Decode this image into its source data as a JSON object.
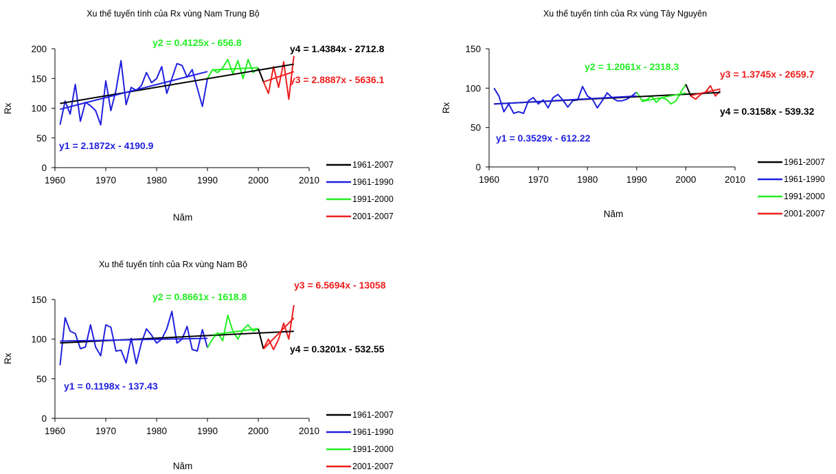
{
  "colors": {
    "black": "#000000",
    "blue": "#1f1fe0",
    "green": "#22ee22",
    "red": "#ee1c1c"
  },
  "chart_data": [
    {
      "type": "line",
      "title": "Xu thế tuyến tính của Rx vùng Nam Trung Bộ",
      "xlabel": "Năm",
      "ylabel": "Rx",
      "xlim": [
        1960,
        2010
      ],
      "ylim": [
        0,
        200
      ],
      "xticks": [
        1960,
        1970,
        1980,
        1990,
        2000,
        2010
      ],
      "yticks": [
        0,
        50,
        100,
        150,
        200
      ],
      "legend_position": "bottom-right",
      "series": [
        {
          "name": "1961-1990",
          "color": "blue",
          "x": [
            1961,
            1962,
            1963,
            1964,
            1965,
            1966,
            1967,
            1968,
            1969,
            1970,
            1971,
            1972,
            1973,
            1974,
            1975,
            1976,
            1977,
            1978,
            1979,
            1980,
            1981,
            1982,
            1983,
            1984,
            1985,
            1986,
            1987,
            1988,
            1989,
            1990
          ],
          "y": [
            72,
            112,
            90,
            140,
            78,
            110,
            104,
            96,
            72,
            146,
            96,
            130,
            180,
            106,
            135,
            130,
            138,
            160,
            143,
            150,
            170,
            125,
            150,
            175,
            172,
            152,
            165,
            134,
            103,
            150
          ]
        },
        {
          "name": "1991-2000",
          "color": "green",
          "x": [
            1990,
            1991,
            1992,
            1993,
            1994,
            1995,
            1996,
            1997,
            1998,
            1999,
            2000
          ],
          "y": [
            150,
            165,
            160,
            168,
            182,
            158,
            180,
            150,
            182,
            160,
            167
          ]
        },
        {
          "name": "2001-2007",
          "color": "red",
          "x": [
            2000,
            2001,
            2002,
            2003,
            2004,
            2005,
            2006,
            2007
          ],
          "y": [
            167,
            145,
            125,
            170,
            135,
            178,
            115,
            188
          ]
        },
        {
          "name": "1961-2007",
          "color": "black",
          "x": [
            2000,
            2001
          ],
          "y": [
            167,
            145
          ]
        }
      ],
      "trendlines": [
        {
          "series": "1961-2007",
          "color": "black",
          "slope": 1.4384,
          "intercept": -2712.8,
          "x_range": [
            1961,
            2007
          ]
        },
        {
          "series": "1961-1990",
          "color": "blue",
          "slope": 2.1872,
          "intercept": -4190.9,
          "x_range": [
            1961,
            1990
          ]
        },
        {
          "series": "1991-2000",
          "color": "green",
          "slope": 0.4125,
          "intercept": -656.8,
          "x_range": [
            1991,
            2000
          ]
        },
        {
          "series": "2001-2007",
          "color": "red",
          "slope": 2.8887,
          "intercept": -5636.1,
          "x_range": [
            2001,
            2007
          ]
        }
      ],
      "equations": [
        {
          "text": "y2 = 0.4125x - 656.8",
          "color": "green"
        },
        {
          "text": "y4 = 1.4384x - 2712.8",
          "color": "black"
        },
        {
          "text": "y3 = 2.8887x - 5636.1",
          "color": "red"
        },
        {
          "text": "y1 = 2.1872x - 4190.9",
          "color": "blue"
        }
      ],
      "legend": [
        "1961-2007",
        "1961-1990",
        "1991-2000",
        "2001-2007"
      ]
    },
    {
      "type": "line",
      "title": "Xu thế tuyến tính của Rx vùng Tây Nguyên",
      "xlabel": "Năm",
      "ylabel": "Rx",
      "xlim": [
        1960,
        2010
      ],
      "ylim": [
        0,
        150
      ],
      "xticks": [
        1960,
        1970,
        1980,
        1990,
        2000,
        2010
      ],
      "yticks": [
        0,
        50,
        100,
        150
      ],
      "legend_position": "bottom-right",
      "series": [
        {
          "name": "1961-1990",
          "color": "blue",
          "x": [
            1961,
            1962,
            1963,
            1964,
            1965,
            1966,
            1967,
            1968,
            1969,
            1970,
            1971,
            1972,
            1973,
            1974,
            1975,
            1976,
            1977,
            1978,
            1979,
            1980,
            1981,
            1982,
            1983,
            1984,
            1985,
            1986,
            1987,
            1988,
            1989,
            1990
          ],
          "y": [
            100,
            90,
            70,
            80,
            68,
            70,
            68,
            84,
            88,
            80,
            85,
            75,
            88,
            92,
            85,
            76,
            84,
            85,
            102,
            90,
            86,
            75,
            84,
            94,
            88,
            84,
            84,
            86,
            90,
            95
          ]
        },
        {
          "name": "1991-2000",
          "color": "green",
          "x": [
            1990,
            1991,
            1992,
            1993,
            1994,
            1995,
            1996,
            1997,
            1998,
            1999,
            2000
          ],
          "y": [
            95,
            85,
            85,
            90,
            82,
            88,
            86,
            80,
            84,
            95,
            105
          ]
        },
        {
          "name": "2001-2007",
          "color": "red",
          "x": [
            2001,
            2002,
            2003,
            2004,
            2005,
            2006,
            2007
          ],
          "y": [
            90,
            86,
            92,
            95,
            103,
            90,
            97
          ]
        },
        {
          "name": "1961-2007",
          "color": "black",
          "x": [
            2000,
            2001
          ],
          "y": [
            105,
            90
          ]
        }
      ],
      "trendlines": [
        {
          "series": "1961-2007",
          "color": "black",
          "slope": 0.3158,
          "intercept": -539.32,
          "x_range": [
            1961,
            2007
          ]
        },
        {
          "series": "1961-1990",
          "color": "blue",
          "slope": 0.3529,
          "intercept": -612.22,
          "x_range": [
            1961,
            1990
          ]
        },
        {
          "series": "1991-2000",
          "color": "green",
          "slope": 1.2061,
          "intercept": -2318.3,
          "x_range": [
            1991,
            2000
          ]
        },
        {
          "series": "2001-2007",
          "color": "red",
          "slope": 1.3745,
          "intercept": -2659.7,
          "x_range": [
            2001,
            2007
          ]
        }
      ],
      "equations": [
        {
          "text": "y2 = 1.2061x - 2318.3",
          "color": "green"
        },
        {
          "text": "y3 = 1.3745x - 2659.7",
          "color": "red"
        },
        {
          "text": "y4 = 0.3158x - 539.32",
          "color": "black"
        },
        {
          "text": "y1 = 0.3529x - 612.22",
          "color": "blue"
        }
      ],
      "legend": [
        "1961-2007",
        "1961-1990",
        "1991-2000",
        "2001-2007"
      ]
    },
    {
      "type": "line",
      "title": "Xu thế tuyến tính của Rx vùng Nam Bộ",
      "xlabel": "Năm",
      "ylabel": "Rx",
      "xlim": [
        1960,
        2010
      ],
      "ylim": [
        0,
        150
      ],
      "xticks": [
        1960,
        1970,
        1980,
        1990,
        2000,
        2010
      ],
      "yticks": [
        0,
        50,
        100,
        150
      ],
      "legend_position": "bottom-right",
      "series": [
        {
          "name": "1961-1990",
          "color": "blue",
          "x": [
            1961,
            1962,
            1963,
            1964,
            1965,
            1966,
            1967,
            1968,
            1969,
            1970,
            1971,
            1972,
            1973,
            1974,
            1975,
            1976,
            1977,
            1978,
            1979,
            1980,
            1981,
            1982,
            1983,
            1984,
            1985,
            1986,
            1987,
            1988,
            1989,
            1990
          ],
          "y": [
            67,
            127,
            110,
            107,
            88,
            90,
            118,
            90,
            79,
            118,
            115,
            85,
            86,
            70,
            101,
            69,
            95,
            113,
            105,
            95,
            100,
            113,
            135,
            95,
            100,
            116,
            87,
            85,
            112,
            89
          ]
        },
        {
          "name": "1991-2000",
          "color": "green",
          "x": [
            1990,
            1991,
            1992,
            1993,
            1994,
            1995,
            1996,
            1997,
            1998,
            1999,
            2000
          ],
          "y": [
            89,
            100,
            108,
            98,
            130,
            110,
            100,
            112,
            118,
            110,
            113
          ]
        },
        {
          "name": "2001-2007",
          "color": "red",
          "x": [
            2001,
            2002,
            2003,
            2004,
            2005,
            2006,
            2007
          ],
          "y": [
            88,
            100,
            87,
            100,
            120,
            100,
            143
          ]
        },
        {
          "name": "1961-2007",
          "color": "black",
          "x": [
            2000,
            2001
          ],
          "y": [
            113,
            88
          ]
        }
      ],
      "trendlines": [
        {
          "series": "1961-2007",
          "color": "black",
          "slope": 0.3201,
          "intercept": -532.55,
          "x_range": [
            1961,
            2007
          ]
        },
        {
          "series": "1961-1990",
          "color": "blue",
          "slope": 0.1198,
          "intercept": -137.43,
          "x_range": [
            1961,
            1990
          ]
        },
        {
          "series": "1991-2000",
          "color": "green",
          "slope": 0.8661,
          "intercept": -1618.8,
          "x_range": [
            1991,
            2000
          ]
        },
        {
          "series": "2001-2007",
          "color": "red",
          "slope": 6.5694,
          "intercept": -13058,
          "x_range": [
            2001,
            2007
          ]
        }
      ],
      "equations": [
        {
          "text": "y2 = 0.8661x - 1618.8",
          "color": "green"
        },
        {
          "text": "y3 = 6.5694x - 13058",
          "color": "red"
        },
        {
          "text": "y4 = 0.3201x - 532.55",
          "color": "black"
        },
        {
          "text": "y1 = 0.1198x - 137.43",
          "color": "blue"
        }
      ],
      "legend": [
        "1961-2007",
        "1961-1990",
        "1991-2000",
        "2001-2007"
      ]
    }
  ]
}
